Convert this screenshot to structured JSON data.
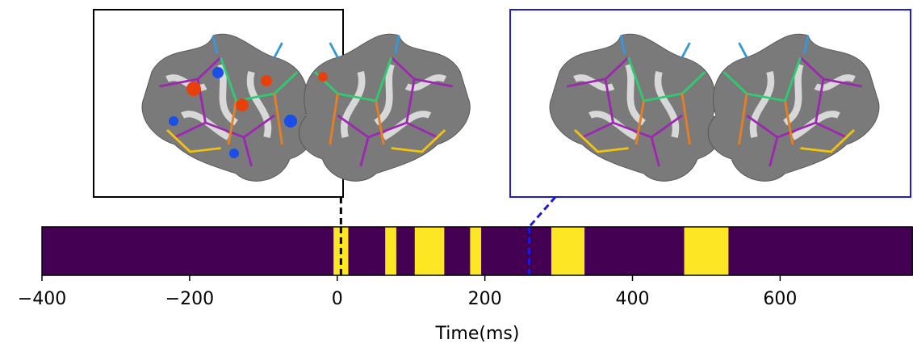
{
  "chart_data": {
    "type": "raster",
    "xlabel": "Time(ms)",
    "xlim": [
      -400,
      780
    ],
    "xticks": [
      {
        "value": -400,
        "label": "−400"
      },
      {
        "value": -200,
        "label": "−200"
      },
      0,
      200,
      400,
      600
    ],
    "background_color": "#440154",
    "band_color": "#fde725",
    "bands": [
      [
        -5,
        15
      ],
      [
        65,
        80
      ],
      [
        105,
        145
      ],
      [
        180,
        195
      ],
      [
        290,
        335
      ],
      [
        470,
        530
      ]
    ],
    "markers": [
      {
        "x": 5,
        "color": "#000000"
      },
      {
        "x": 260,
        "color": "#1a1adc"
      }
    ]
  }
}
